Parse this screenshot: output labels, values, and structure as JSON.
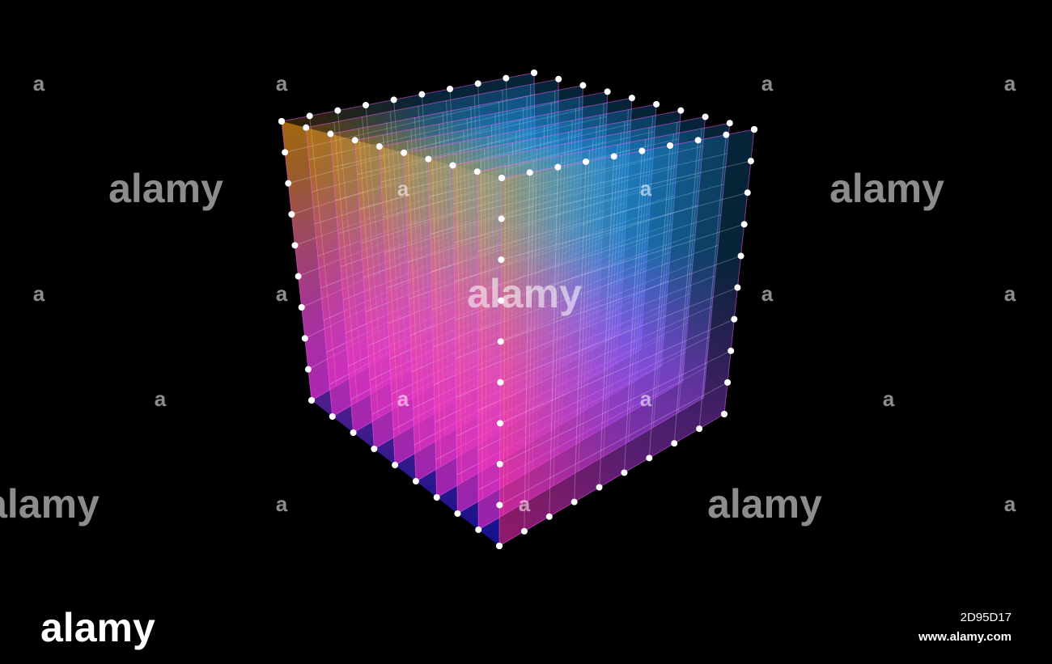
{
  "watermarks": [
    "alamy",
    "alamy",
    "alamy",
    "alamy",
    "alamy"
  ],
  "small_marks": [
    "a",
    "a",
    "a",
    "a",
    "a",
    "a",
    "a",
    "a",
    "a",
    "a",
    "a",
    "a",
    "a",
    "a",
    "a",
    "a",
    "a"
  ],
  "footer": {
    "logo": "alamy",
    "image_id": "2D95D17",
    "url": "www.alamy.com"
  }
}
